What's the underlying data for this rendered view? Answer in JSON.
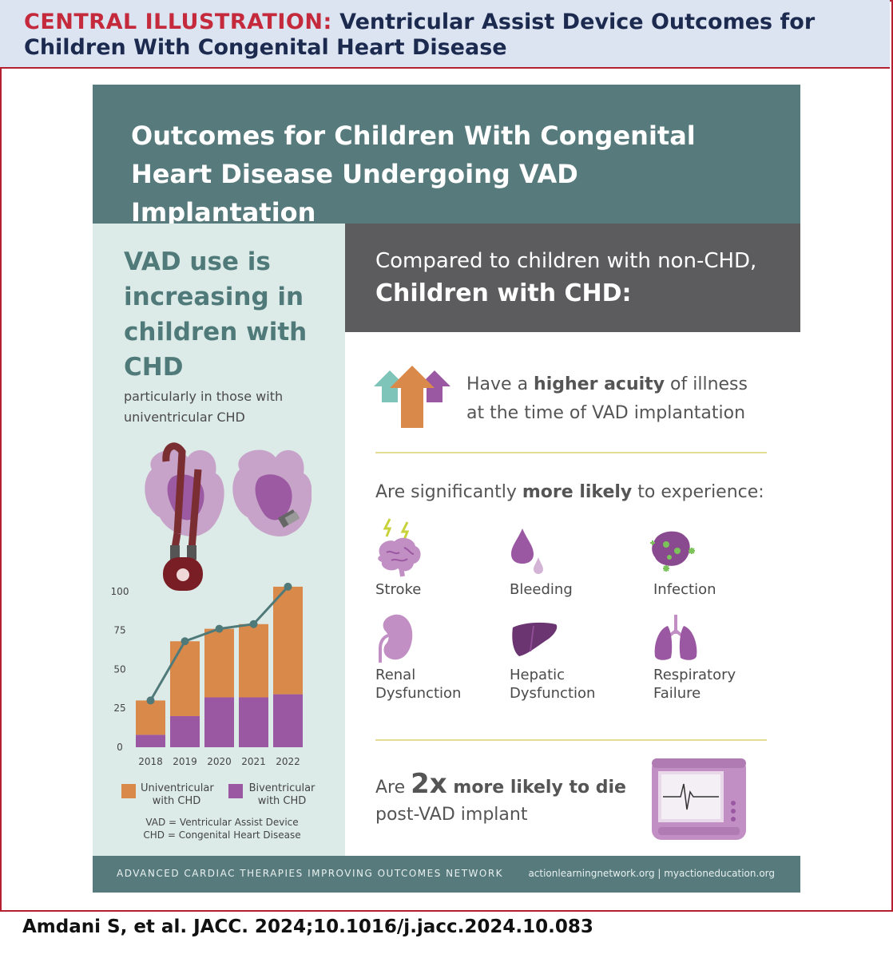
{
  "banner": {
    "lead": "CENTRAL ILLUSTRATION:",
    "title": "Ventricular Assist Device Outcomes for Children With Congenital Heart Disease"
  },
  "header": {
    "title": "Outcomes for Children With Congenital Heart Disease Undergoing VAD Implantation"
  },
  "left": {
    "heading": "VAD use is increasing in children with CHD",
    "sub": "particularly in those with univentricular CHD",
    "abbr1": "VAD = Ventricular Assist Device",
    "abbr2": "CHD = Congenital Heart Disease"
  },
  "right": {
    "compare": "Compared to children with non-CHD,",
    "compare_bold": "Children with CHD:",
    "acuity_pre": "Have a ",
    "acuity_bold": "higher acuity",
    "acuity_post": " of illness",
    "acuity_line2": "at the time of VAD implantation",
    "likely_pre": "Are significantly ",
    "likely_bold": "more likely",
    "likely_post": " to experience:",
    "conditions": [
      "Stroke",
      "Bleeding",
      "Infection",
      "Renal",
      "Dysfunction",
      "Hepatic",
      "Dysfunction",
      "Respiratory",
      "Failure"
    ],
    "die_pre": "Are ",
    "die_big": "2x",
    "die_bold": " more likely to die",
    "die_line2": "post-VAD implant"
  },
  "footer": {
    "left": "ADVANCED CARDIAC THERAPIES IMPROVING OUTCOMES NETWORK",
    "right": "actionlearningnetwork.org | myactioneducation.org"
  },
  "citation": "Amdani S, et al. JACC. 2024;10.1016/j.jacc.2024.10.083",
  "colors": {
    "univentricular": "#d9894a",
    "biventricular": "#9b58a2",
    "line": "#507a7a",
    "header": "#577a7c",
    "accent": "#c42a3c"
  },
  "chart_data": {
    "type": "bar",
    "stacked": true,
    "categories": [
      "2018",
      "2019",
      "2020",
      "2021",
      "2022"
    ],
    "series": [
      {
        "name": "Biventricular with CHD",
        "values": [
          8,
          20,
          32,
          32,
          34
        ]
      },
      {
        "name": "Univentricular with CHD",
        "values": [
          22,
          48,
          44,
          47,
          69
        ]
      }
    ],
    "line_values": [
      30,
      68,
      76,
      79,
      103
    ],
    "yticks": [
      "0",
      "25",
      "50",
      "75",
      "100"
    ],
    "ylim": [
      0,
      105
    ],
    "legend": [
      "Univentricular",
      "with CHD",
      "Biventricular",
      "with CHD"
    ]
  }
}
